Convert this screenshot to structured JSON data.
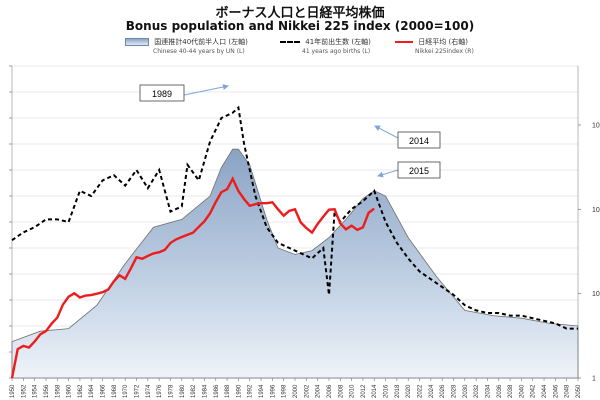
{
  "chart_data": {
    "type": "line",
    "title": "ボーナス人口と日経平均株価",
    "subtitle": "Bonus population and Nikkei 225 index   (2000=100)",
    "xlim": [
      1950,
      2050
    ],
    "right_y_scale": "log",
    "right_y_ticks": [
      "1000",
      "100",
      "10",
      "1"
    ],
    "x_tick_labels": [
      "1950",
      "1952",
      "1954",
      "1956",
      "1958",
      "1960",
      "1962",
      "1964",
      "1966",
      "1968",
      "1970",
      "1972",
      "1974",
      "1976",
      "1978",
      "1980",
      "1982",
      "1984",
      "1986",
      "1988",
      "1990",
      "1992",
      "1994",
      "1996",
      "1998",
      "2000",
      "2002",
      "2004",
      "2006",
      "2008",
      "2010",
      "2012",
      "2014",
      "2016",
      "2018",
      "2020",
      "2022",
      "2024",
      "2026",
      "2028",
      "2030",
      "2032",
      "2034",
      "2036",
      "2038",
      "2040",
      "2042",
      "2044",
      "2046",
      "2048",
      "2050"
    ],
    "legend_placement": "top",
    "grid": true,
    "series": [
      {
        "name": "国連推計40代前半人口 (左軸)",
        "name_en": "Chinese 40-44 years  by UN (L)",
        "style": "area",
        "color": "#5b7fa8",
        "x": [
          1950,
          1955,
          1960,
          1965,
          1970,
          1975,
          1980,
          1985,
          1987,
          1989,
          1990,
          1992,
          1995,
          1997,
          2000,
          2003,
          2006,
          2009,
          2012,
          2014,
          2016,
          2018,
          2020,
          2025,
          2030,
          2035,
          2040,
          2045,
          2050
        ],
        "values": [
          1.4,
          1.8,
          1.9,
          2.8,
          4.4,
          5.8,
          6.1,
          7.0,
          8.1,
          8.8,
          8.8,
          8.2,
          6.1,
          5.0,
          4.75,
          4.9,
          5.4,
          6.1,
          6.9,
          7.2,
          7.0,
          6.2,
          5.4,
          3.9,
          2.6,
          2.4,
          2.3,
          2.1,
          2.0
        ]
      },
      {
        "name": "41年前出生数 (左軸)",
        "name_en": "41 years ago births (L)",
        "style": "dashed",
        "color": "#000000",
        "x": [
          1950,
          1952,
          1954,
          1956,
          1958,
          1960,
          1962,
          1964,
          1966,
          1968,
          1970,
          1972,
          1974,
          1976,
          1978,
          1980,
          1981,
          1983,
          1985,
          1987,
          1989,
          1990,
          1991,
          1993,
          1995,
          1997,
          1999,
          2001,
          2003,
          2005,
          2006,
          2007,
          2008,
          2010,
          2012,
          2014,
          2016,
          2018,
          2020,
          2022,
          2024,
          2026,
          2028,
          2030,
          2032,
          2034,
          2036,
          2038,
          2040,
          2042,
          2044,
          2046,
          2048,
          2050
        ],
        "values": [
          5.3,
          5.6,
          5.8,
          6.1,
          6.1,
          6.0,
          7.2,
          7.0,
          7.6,
          7.8,
          7.4,
          8.0,
          7.3,
          8.0,
          6.4,
          6.6,
          8.2,
          7.6,
          9.1,
          10.0,
          10.2,
          10.4,
          9.0,
          7.0,
          5.8,
          5.2,
          5.0,
          4.8,
          4.6,
          5.0,
          3.2,
          6.4,
          6.0,
          6.5,
          6.8,
          7.2,
          6.0,
          5.2,
          4.6,
          4.1,
          3.8,
          3.5,
          3.2,
          2.8,
          2.6,
          2.5,
          2.5,
          2.4,
          2.4,
          2.3,
          2.2,
          2.1,
          1.9,
          1.9
        ]
      },
      {
        "name": "日経平均 (右軸)",
        "name_en": "Nikkei 225index (R)",
        "style": "line",
        "color": "#ee1c1c",
        "axis": "right",
        "x": [
          1950,
          1951,
          1952,
          1953,
          1954,
          1955,
          1956,
          1957,
          1958,
          1959,
          1960,
          1961,
          1962,
          1963,
          1964,
          1965,
          1966,
          1967,
          1968,
          1969,
          1970,
          1971,
          1972,
          1973,
          1974,
          1975,
          1976,
          1977,
          1978,
          1979,
          1980,
          1981,
          1982,
          1983,
          1984,
          1985,
          1986,
          1987,
          1988,
          1989,
          1990,
          1991,
          1992,
          1993,
          1994,
          1995,
          1996,
          1997,
          1998,
          1999,
          2000,
          2001,
          2002,
          2003,
          2004,
          2005,
          2006,
          2007,
          2008,
          2009,
          2010,
          2011,
          2012,
          2013,
          2014
        ],
        "values": [
          1,
          2.2,
          2.4,
          2.3,
          2.7,
          3.3,
          3.6,
          4.4,
          5.2,
          7.4,
          9.2,
          10.1,
          9.0,
          9.5,
          9.6,
          10,
          10.4,
          11.2,
          14,
          16.5,
          15,
          20,
          27,
          26,
          28,
          30,
          31,
          33,
          40,
          44,
          47,
          50,
          53,
          62,
          72,
          90,
          122,
          160,
          173,
          230,
          165,
          132,
          110,
          115,
          118,
          118,
          121,
          100,
          84,
          96,
          100,
          70,
          60,
          53,
          67,
          82,
          99,
          100,
          68,
          58,
          64,
          57,
          61,
          91,
          102
        ]
      }
    ],
    "annotations": [
      {
        "label": "1989"
      },
      {
        "label": "2014"
      },
      {
        "label": "2015"
      }
    ]
  }
}
